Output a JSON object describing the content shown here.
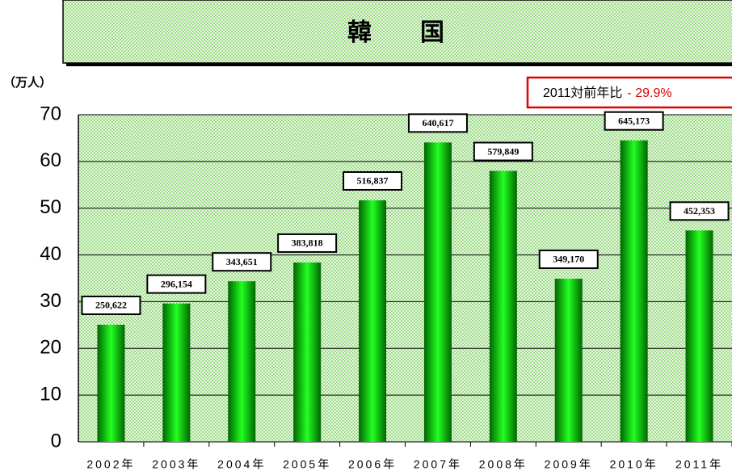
{
  "chart_data": {
    "type": "bar",
    "title": "韓　　国",
    "y_axis_label": "（万人）",
    "annotation": {
      "text": "2011対前年比",
      "change": "- 29.9%"
    },
    "categories": [
      "2002年",
      "2003年",
      "2004年",
      "2005年",
      "2006年",
      "2007年",
      "2008年",
      "2009年",
      "2010年",
      "2011年"
    ],
    "values": [
      25.0622,
      29.6154,
      34.3651,
      38.3818,
      51.6837,
      64.0617,
      57.9849,
      34.917,
      64.5173,
      45.2353
    ],
    "value_labels": [
      "250,622",
      "296,154",
      "343,651",
      "383,818",
      "516,837",
      "640,617",
      "579,849",
      "349,170",
      "645,173",
      "452,353"
    ],
    "color": "#00cc00",
    "ylim": [
      0,
      70
    ],
    "yticks": [
      0,
      10,
      20,
      30,
      40,
      50,
      60,
      70
    ],
    "grid": true
  }
}
